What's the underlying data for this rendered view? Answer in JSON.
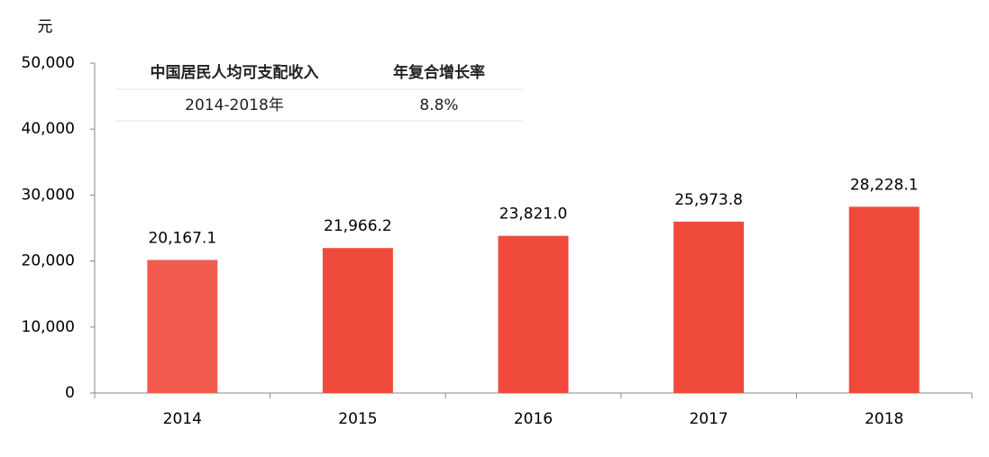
{
  "chart_data": {
    "type": "bar",
    "y_label": "元",
    "categories": [
      "2014",
      "2015",
      "2016",
      "2017",
      "2018"
    ],
    "values": [
      20167.1,
      21966.2,
      23821.0,
      25973.8,
      28228.1
    ],
    "value_labels": [
      "20,167.1",
      "21,966.2",
      "23,821.0",
      "25,973.8",
      "28,228.1"
    ],
    "colors": [
      "#f15c4f",
      "#f04a3c",
      "#f04a3c",
      "#f04a3c",
      "#f04a3c"
    ],
    "ylim": [
      0,
      50000
    ],
    "yticks": [
      0,
      {
        "value": 10000,
        "label": "10,000"
      },
      {
        "value": 20000,
        "label": "20,000"
      },
      {
        "value": 30000,
        "label": "30,000"
      },
      {
        "value": 40000,
        "label": "40,000"
      },
      {
        "value": 50000,
        "label": "50,000"
      }
    ],
    "grid": false,
    "table": {
      "header": [
        "中国居民人均可支配收入",
        "年复合增长率"
      ],
      "rows": [
        [
          "2014-2018年",
          "8.8%"
        ]
      ]
    }
  }
}
